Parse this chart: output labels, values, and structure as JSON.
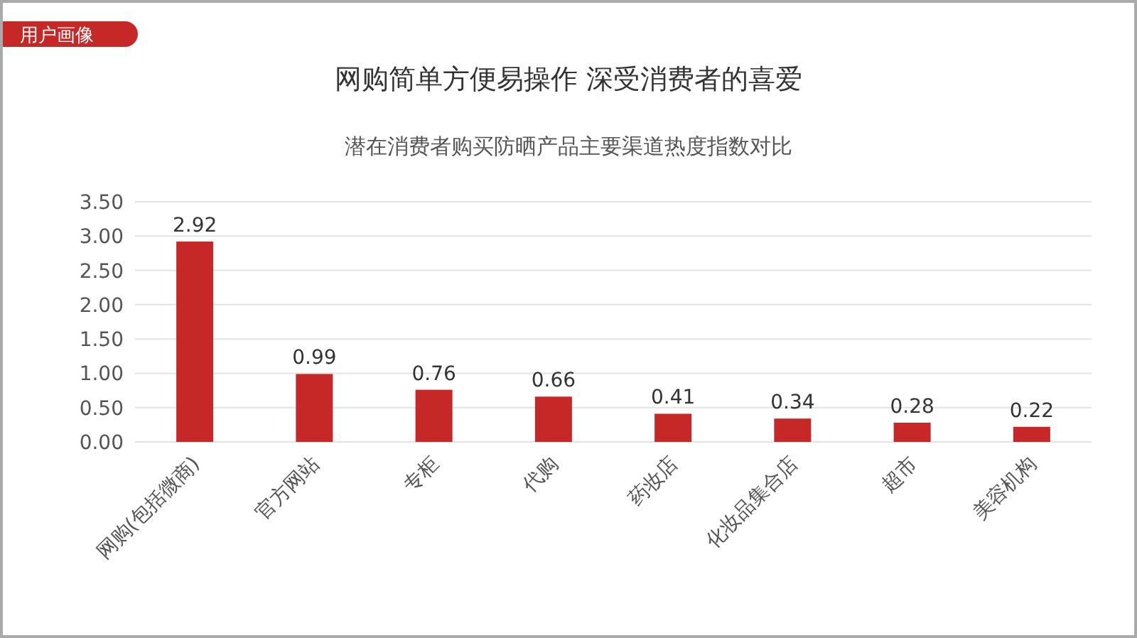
{
  "chart_data": {
    "type": "bar",
    "title": "网购简单方便易操作  深受消费者的喜爱",
    "subtitle": "潜在消费者购买防晒产品主要渠道热度指数对比",
    "annotations": [
      "用户画像"
    ],
    "categories": [
      "网购(包括微商)",
      "官方网站",
      "专柜",
      "代购",
      "药妆店",
      "化妆品集合店",
      "超市",
      "美容机构"
    ],
    "values": [
      2.92,
      0.99,
      0.76,
      0.66,
      0.41,
      0.34,
      0.28,
      0.22
    ],
    "color": "#c62828",
    "data_labels": true,
    "grid": "y",
    "ylim": [
      0,
      3.5
    ],
    "yticks": [
      {
        "value": 0,
        "label": "0.00"
      },
      {
        "value": 0.5,
        "label": "0.50"
      },
      {
        "value": 1,
        "label": "1.00"
      },
      {
        "value": 1.5,
        "label": "1.50"
      },
      {
        "value": 2,
        "label": "2.00"
      },
      {
        "value": 2.5,
        "label": "2.50"
      },
      {
        "value": 3,
        "label": "3.00"
      },
      {
        "value": 3.5,
        "label": "3.50"
      }
    ]
  }
}
